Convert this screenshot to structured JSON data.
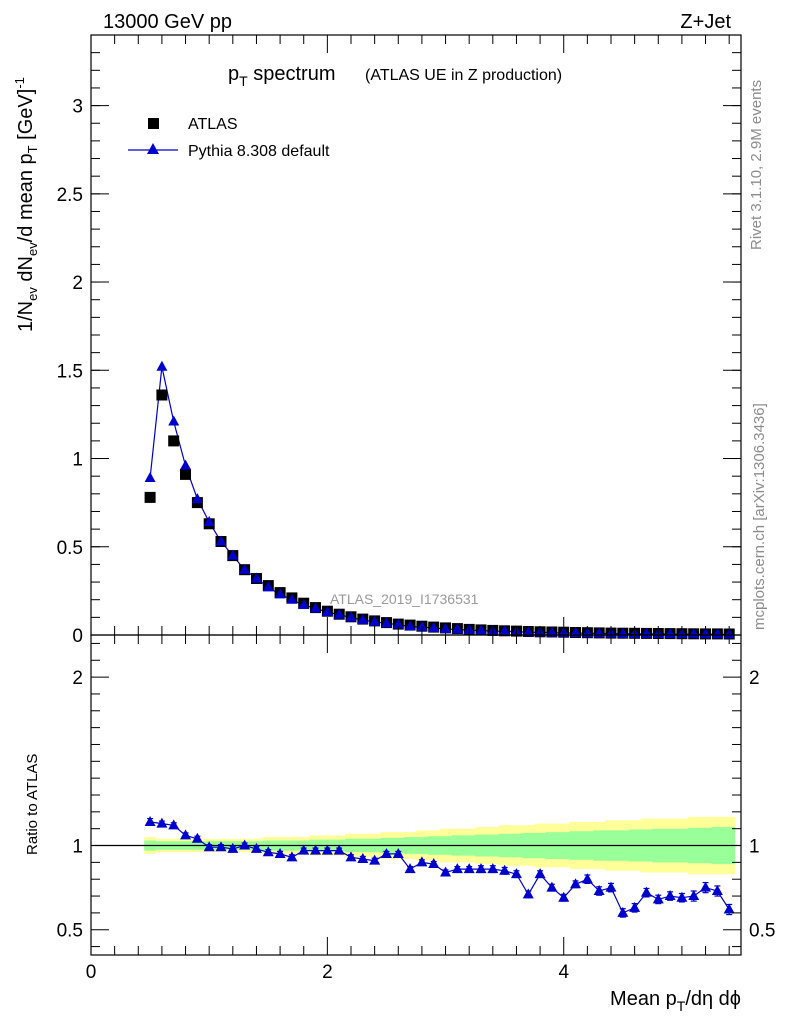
{
  "header": {
    "energy_label": "13000 GeV pp",
    "process_label": "Z+Jet"
  },
  "side_text": {
    "rivet": "Rivet 3.1.10,  2.9M events",
    "mcplots": "mcplots.cern.ch [arXiv:1306.3436]"
  },
  "chart_data": [
    {
      "type": "scatter",
      "panel": "main",
      "title": "p_T spectrum",
      "title_parts": {
        "p": "p",
        "sub": "T",
        "rest": " spectrum",
        "suffix": "(ATLAS UE in Z production)"
      },
      "ylabel": "1/N_ev dN_ev/d mean p_T [GeV]^-1",
      "xlim": [
        0,
        5.5
      ],
      "ylim": [
        0,
        3.4
      ],
      "yticks": [
        0,
        0.5,
        1,
        1.5,
        2,
        2.5,
        3
      ],
      "ytick_labels": [
        "0",
        "0.5",
        "1",
        "1.5",
        "2",
        "2.5",
        "3"
      ],
      "analysis_label": "ATLAS_2019_I1736531",
      "legend_position": "top-left",
      "x": [
        0.5,
        0.6,
        0.7,
        0.8,
        0.9,
        1.0,
        1.1,
        1.2,
        1.3,
        1.4,
        1.5,
        1.6,
        1.7,
        1.8,
        1.9,
        2.0,
        2.1,
        2.2,
        2.3,
        2.4,
        2.5,
        2.6,
        2.7,
        2.8,
        2.9,
        3.0,
        3.1,
        3.2,
        3.3,
        3.4,
        3.5,
        3.6,
        3.7,
        3.8,
        3.9,
        4.0,
        4.1,
        4.2,
        4.3,
        4.4,
        4.5,
        4.6,
        4.7,
        4.8,
        4.9,
        5.0,
        5.1,
        5.2,
        5.3,
        5.4
      ],
      "series": [
        {
          "name": "ATLAS",
          "marker": "square",
          "color": "#000000",
          "values": [
            0.78,
            1.36,
            1.1,
            0.91,
            0.75,
            0.63,
            0.53,
            0.45,
            0.37,
            0.32,
            0.28,
            0.24,
            0.21,
            0.18,
            0.155,
            0.135,
            0.118,
            0.103,
            0.09,
            0.08,
            0.07,
            0.062,
            0.056,
            0.05,
            0.045,
            0.04,
            0.036,
            0.032,
            0.029,
            0.026,
            0.024,
            0.022,
            0.02,
            0.018,
            0.017,
            0.016,
            0.014,
            0.013,
            0.012,
            0.011,
            0.01,
            0.0095,
            0.009,
            0.0085,
            0.008,
            0.0075,
            0.007,
            0.0065,
            0.006,
            0.0055
          ]
        },
        {
          "name": "Pythia 8.308 default",
          "marker": "triangle",
          "color": "#0000cc",
          "values": [
            0.89,
            1.52,
            1.21,
            0.96,
            0.77,
            0.64,
            0.53,
            0.45,
            0.37,
            0.32,
            0.27,
            0.23,
            0.2,
            0.17,
            0.15,
            0.13,
            0.115,
            0.099,
            0.085,
            0.075,
            0.066,
            0.059,
            0.048,
            0.045,
            0.04,
            0.034,
            0.031,
            0.028,
            0.025,
            0.022,
            0.021,
            0.019,
            0.015,
            0.015,
            0.013,
            0.012,
            0.011,
            0.01,
            0.009,
            0.008,
            0.006,
            0.006,
            0.0065,
            0.006,
            0.0056,
            0.0052,
            0.0049,
            0.0049,
            0.0044,
            0.0034
          ]
        }
      ]
    },
    {
      "type": "scatter",
      "panel": "ratio",
      "ylabel": "Ratio to ATLAS",
      "xlabel": "Mean p_T/dη dϕ",
      "xlim": [
        0,
        5.5
      ],
      "ylim": [
        0.35,
        2.25
      ],
      "xticks": [
        0,
        2,
        4
      ],
      "xtick_labels": [
        "0",
        "2",
        "4"
      ],
      "yticks": [
        0.5,
        1,
        2
      ],
      "ytick_labels": [
        "0.5",
        "1",
        "2"
      ],
      "reference_line": 1,
      "bands": [
        {
          "name": "ATLAS total uncertainty",
          "color": "#ffff99",
          "halfwidth": [
            0.05,
            0.04,
            0.04,
            0.04,
            0.04,
            0.04,
            0.04,
            0.04,
            0.04,
            0.04,
            0.05,
            0.05,
            0.05,
            0.05,
            0.06,
            0.06,
            0.06,
            0.07,
            0.07,
            0.07,
            0.08,
            0.08,
            0.08,
            0.09,
            0.09,
            0.1,
            0.1,
            0.1,
            0.11,
            0.11,
            0.12,
            0.12,
            0.12,
            0.13,
            0.13,
            0.13,
            0.14,
            0.14,
            0.14,
            0.15,
            0.15,
            0.15,
            0.16,
            0.16,
            0.16,
            0.16,
            0.17,
            0.17,
            0.17,
            0.17
          ]
        },
        {
          "name": "ATLAS statistical uncertainty",
          "color": "#99ff99",
          "halfwidth": [
            0.03,
            0.025,
            0.025,
            0.025,
            0.025,
            0.025,
            0.025,
            0.025,
            0.025,
            0.025,
            0.03,
            0.03,
            0.03,
            0.03,
            0.035,
            0.035,
            0.035,
            0.04,
            0.04,
            0.04,
            0.045,
            0.045,
            0.05,
            0.05,
            0.055,
            0.055,
            0.06,
            0.06,
            0.065,
            0.065,
            0.07,
            0.07,
            0.075,
            0.075,
            0.08,
            0.08,
            0.085,
            0.085,
            0.09,
            0.09,
            0.09,
            0.095,
            0.095,
            0.1,
            0.1,
            0.1,
            0.105,
            0.105,
            0.11,
            0.11
          ]
        }
      ],
      "series": [
        {
          "name": "Pythia 8.308 default",
          "marker": "triangle",
          "color": "#0000cc",
          "values": [
            1.14,
            1.13,
            1.12,
            1.06,
            1.04,
            0.99,
            0.99,
            0.98,
            1.0,
            0.98,
            0.96,
            0.95,
            0.93,
            0.97,
            0.97,
            0.97,
            0.97,
            0.93,
            0.92,
            0.91,
            0.95,
            0.95,
            0.86,
            0.9,
            0.89,
            0.84,
            0.86,
            0.86,
            0.86,
            0.86,
            0.85,
            0.83,
            0.71,
            0.83,
            0.75,
            0.69,
            0.77,
            0.8,
            0.73,
            0.75,
            0.6,
            0.63,
            0.72,
            0.68,
            0.7,
            0.69,
            0.7,
            0.75,
            0.73,
            0.62
          ],
          "errors": [
            0.02,
            0.015,
            0.015,
            0.015,
            0.015,
            0.015,
            0.015,
            0.015,
            0.015,
            0.015,
            0.015,
            0.015,
            0.015,
            0.015,
            0.015,
            0.015,
            0.015,
            0.015,
            0.015,
            0.015,
            0.015,
            0.015,
            0.015,
            0.015,
            0.015,
            0.015,
            0.015,
            0.015,
            0.02,
            0.02,
            0.02,
            0.02,
            0.02,
            0.02,
            0.02,
            0.02,
            0.02,
            0.025,
            0.025,
            0.025,
            0.025,
            0.025,
            0.025,
            0.025,
            0.025,
            0.025,
            0.03,
            0.03,
            0.03,
            0.03
          ]
        }
      ]
    }
  ]
}
